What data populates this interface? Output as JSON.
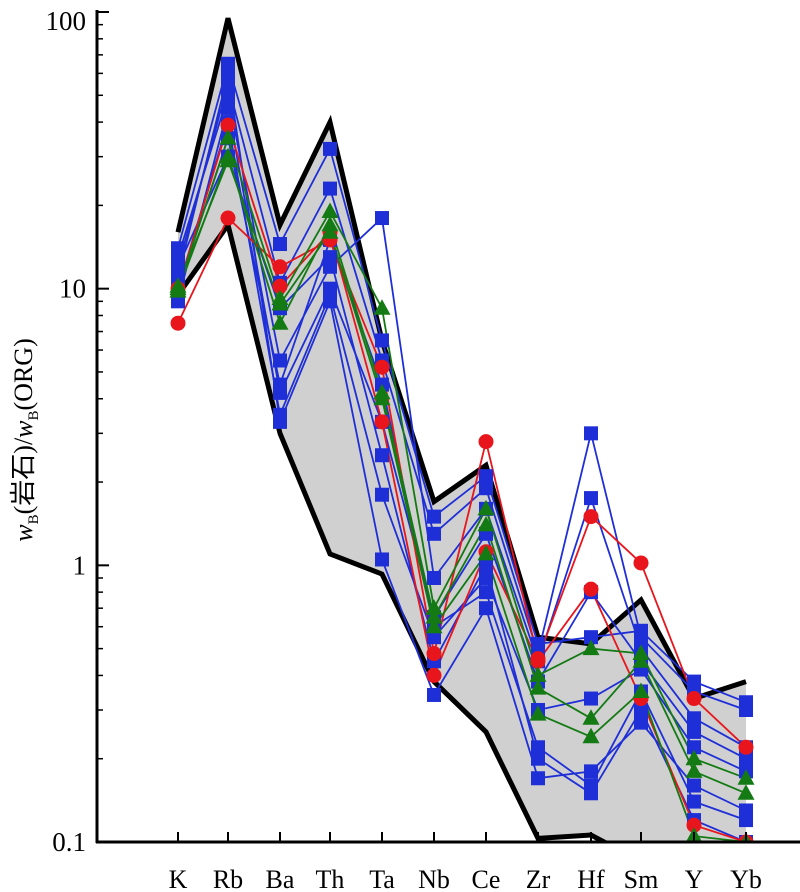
{
  "chart_data": {
    "type": "line",
    "yscale": "log",
    "ylim": [
      0.1,
      100
    ],
    "ylabel": "wB(岩石)/wB(ORG)",
    "ylabel_parts": {
      "w1": "w",
      "sub1": "B",
      "mid": "(岩石)/",
      "w2": "w",
      "sub2": "B",
      "tail": "(ORG)"
    },
    "y_ticks": [
      {
        "value": 0.1,
        "label": "0.1"
      },
      {
        "value": 1,
        "label": "1"
      },
      {
        "value": 10,
        "label": "10"
      },
      {
        "value": 100,
        "label": "100"
      }
    ],
    "categories": [
      "K",
      "Rb",
      "Ba",
      "Th",
      "Ta",
      "Nb",
      "Ce",
      "Zr",
      "Hf",
      "Sm",
      "Y",
      "Yb"
    ],
    "envelope": {
      "fill": "#d0d0d0",
      "upper": [
        16,
        95,
        17,
        40,
        6.5,
        1.7,
        2.3,
        0.55,
        0.52,
        0.75,
        0.33,
        0.38
      ],
      "lower": [
        9.5,
        17,
        3.0,
        1.1,
        0.93,
        0.38,
        0.25,
        0.103,
        0.106,
        0.085,
        0.08,
        0.075
      ]
    },
    "series": [
      {
        "marker": "square",
        "color": "#1f2fd8",
        "values": [
          14,
          65,
          14.5,
          32,
          6.5,
          1.5,
          2.1,
          0.52,
          0.55,
          0.58,
          0.38,
          0.32
        ]
      },
      {
        "marker": "square",
        "color": "#1f2fd8",
        "values": [
          12,
          55,
          10.5,
          23,
          5.5,
          1.3,
          1.9,
          0.48,
          3.0,
          0.55,
          0.35,
          0.3
        ]
      },
      {
        "marker": "square",
        "color": "#1f2fd8",
        "values": [
          13,
          50,
          5.5,
          12,
          18,
          0.9,
          1.6,
          0.45,
          1.75,
          0.5,
          0.28,
          0.22
        ]
      },
      {
        "marker": "square",
        "color": "#1f2fd8",
        "values": [
          9,
          45,
          4.2,
          10,
          3.3,
          0.65,
          1.3,
          0.38,
          0.8,
          0.45,
          0.25,
          0.2
        ]
      },
      {
        "marker": "square",
        "color": "#1f2fd8",
        "values": [
          10,
          40,
          3.5,
          9.5,
          1.8,
          0.55,
          0.9,
          0.3,
          0.33,
          0.42,
          0.22,
          0.18
        ]
      },
      {
        "marker": "square",
        "color": "#1f2fd8",
        "values": [
          11,
          60,
          3.3,
          9,
          1.05,
          0.34,
          0.7,
          0.17,
          0.18,
          0.27,
          0.16,
          0.13
        ]
      },
      {
        "marker": "square",
        "color": "#1f2fd8",
        "values": [
          10,
          35,
          4.5,
          15,
          4.5,
          0.6,
          0.8,
          0.22,
          0.16,
          0.35,
          0.14,
          0.12
        ]
      },
      {
        "marker": "square",
        "color": "#1f2fd8",
        "values": [
          12,
          30,
          8.5,
          13,
          2.5,
          0.45,
          1.0,
          0.2,
          0.15,
          0.3,
          0.12,
          0.1
        ]
      },
      {
        "marker": "circle",
        "color": "#e8161c",
        "values": [
          7.5,
          18,
          12,
          15,
          5.2,
          0.48,
          2.8,
          0.46,
          1.5,
          1.02,
          0.33,
          0.22
        ]
      },
      {
        "marker": "circle",
        "color": "#e8161c",
        "values": [
          10,
          39,
          10.2,
          16,
          3.3,
          0.4,
          1.12,
          0.45,
          0.82,
          0.33,
          0.115,
          0.1
        ]
      },
      {
        "marker": "triangle",
        "color": "#147a14",
        "values": [
          10,
          35,
          9.2,
          19,
          8.5,
          0.7,
          1.6,
          0.4,
          0.5,
          0.48,
          0.2,
          0.17
        ]
      },
      {
        "marker": "triangle",
        "color": "#147a14",
        "values": [
          9.8,
          30,
          7.5,
          17,
          4.2,
          0.65,
          1.4,
          0.36,
          0.28,
          0.45,
          0.18,
          0.15
        ]
      },
      {
        "marker": "triangle",
        "color": "#147a14",
        "values": [
          10.2,
          29,
          8.8,
          16,
          4.0,
          0.6,
          1.1,
          0.29,
          0.24,
          0.35,
          0.105,
          0.1
        ]
      }
    ]
  }
}
